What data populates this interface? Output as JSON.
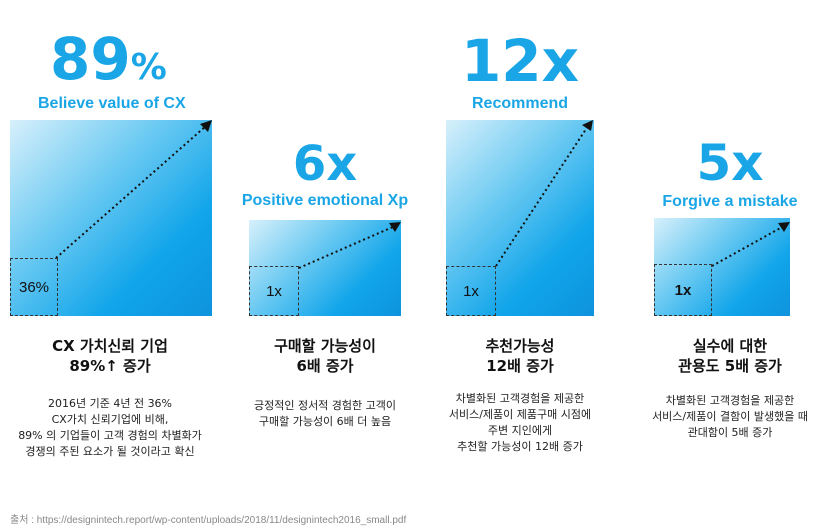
{
  "columns": [
    {
      "big": "89",
      "big_suffix": "%",
      "sub": "Believe value of CX",
      "inner_label": "36%",
      "heading": [
        "CX 가치신뢰 기업",
        "89%↑ 증가"
      ],
      "desc": [
        "2016년 기준 4년 전 36%",
        "CX가치 신뢰기업에 비해,",
        "89% 의 기업들이 고객 경험의 차별화가",
        "경쟁의 주된 요소가 될 것이라고 확신"
      ]
    },
    {
      "big": "6x",
      "sub": "Positive emotional Xp",
      "inner_label": "1x",
      "heading": [
        "구매할 가능성이",
        "6배 증가"
      ],
      "desc": [
        "긍정적인 정서적 경험한 고객이",
        "구매할 가능성이 6배 더 높음"
      ]
    },
    {
      "big": "12x",
      "sub": "Recommend",
      "inner_label": "1x",
      "heading": [
        "추천가능성",
        "12배 증가"
      ],
      "desc": [
        "차별화된 고객경험을 제공한",
        "서비스/제품이 제품구매 시점에",
        "주변 지인에게",
        "추천할 가능성이 12배 증가"
      ]
    },
    {
      "big": "5x",
      "sub": "Forgive a mistake",
      "inner_label": "1x",
      "heading": [
        "실수에 대한",
        "관용도 5배 증가"
      ],
      "desc": [
        "차별화된 고객경험을 제공한",
        "서비스/제품이 결함이 발생했을 때",
        "관대함이 5배 증가"
      ]
    }
  ],
  "footer": "출처 : https://designintech.report/wp-content/uploads/2018/11/designintech2016_small.pdf",
  "colors": {
    "accent": "#1aa6e6",
    "box_start": "#d7f0fb",
    "box_end": "#0d93dc"
  }
}
